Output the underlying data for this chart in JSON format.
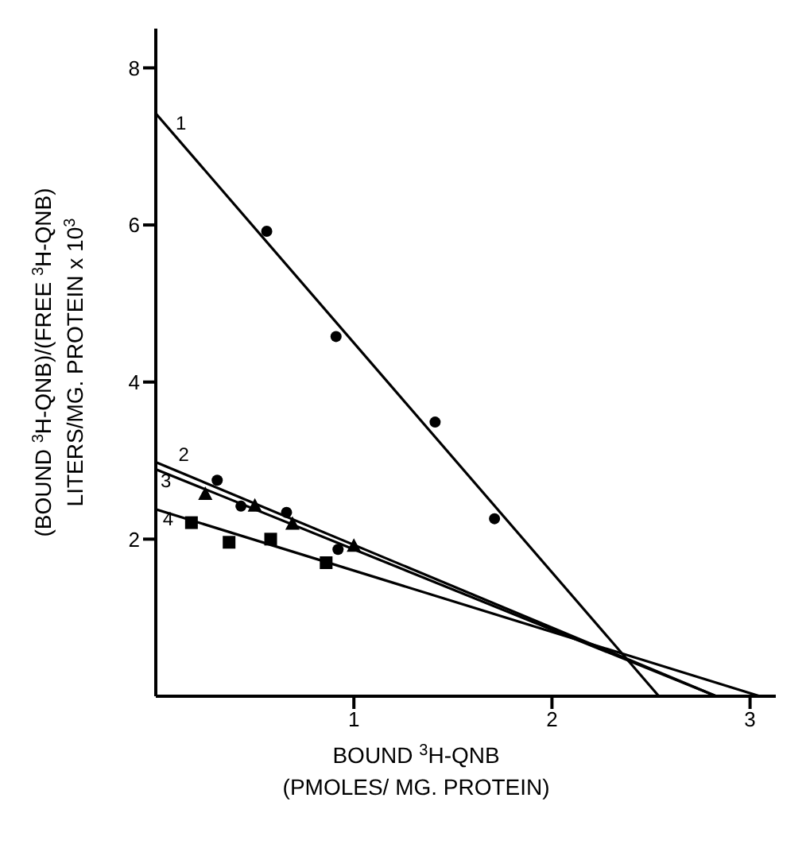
{
  "chart_data": {
    "type": "scatter",
    "xlabel": "BOUND $^{3}$H-QNB\n(PMOLES/ MG. PROTEIN)",
    "ylabel": "(BOUND $^{3}$H-QNB)/(FREE $^{3}$H-QNB)\nLITERS/MG. PROTEIN  x 10$^{3}$",
    "xlim": [
      0,
      3.13
    ],
    "ylim": [
      0,
      8.5
    ],
    "xticks": [
      1,
      2,
      3
    ],
    "yticks": [
      2,
      4,
      6,
      8
    ],
    "grid": false,
    "legend": false,
    "series": [
      {
        "marker": "circle",
        "color": "#000000",
        "x": [
          0.56,
          0.91,
          1.41,
          1.71
        ],
        "values": [
          5.92,
          4.58,
          3.49,
          2.26
        ]
      },
      {
        "marker": "circle",
        "color": "#000000",
        "x": [
          0.31,
          0.43,
          0.66,
          0.92
        ],
        "values": [
          2.75,
          2.42,
          2.34,
          1.87
        ]
      },
      {
        "marker": "triangle",
        "color": "#000000",
        "x": [
          0.25,
          0.5,
          0.69,
          1.0
        ],
        "values": [
          2.57,
          2.42,
          2.19,
          1.91
        ]
      },
      {
        "marker": "square",
        "color": "#000000",
        "x": [
          0.18,
          0.37,
          0.58,
          0.86
        ],
        "values": [
          2.21,
          1.96,
          2.0,
          1.7
        ]
      },
      {
        "type": "line",
        "color": "#000000",
        "x": [
          0,
          2.54
        ],
        "values": [
          7.42,
          0
        ]
      },
      {
        "type": "line",
        "color": "#000000",
        "x": [
          0,
          2.83
        ],
        "values": [
          2.98,
          0
        ]
      },
      {
        "type": "line",
        "color": "#000000",
        "x": [
          0,
          2.83
        ],
        "values": [
          2.89,
          0
        ]
      },
      {
        "type": "line",
        "color": "#000000",
        "x": [
          0,
          3.05
        ],
        "values": [
          2.38,
          0
        ]
      }
    ],
    "annotations": [
      "1",
      "2",
      "3",
      "4"
    ]
  }
}
